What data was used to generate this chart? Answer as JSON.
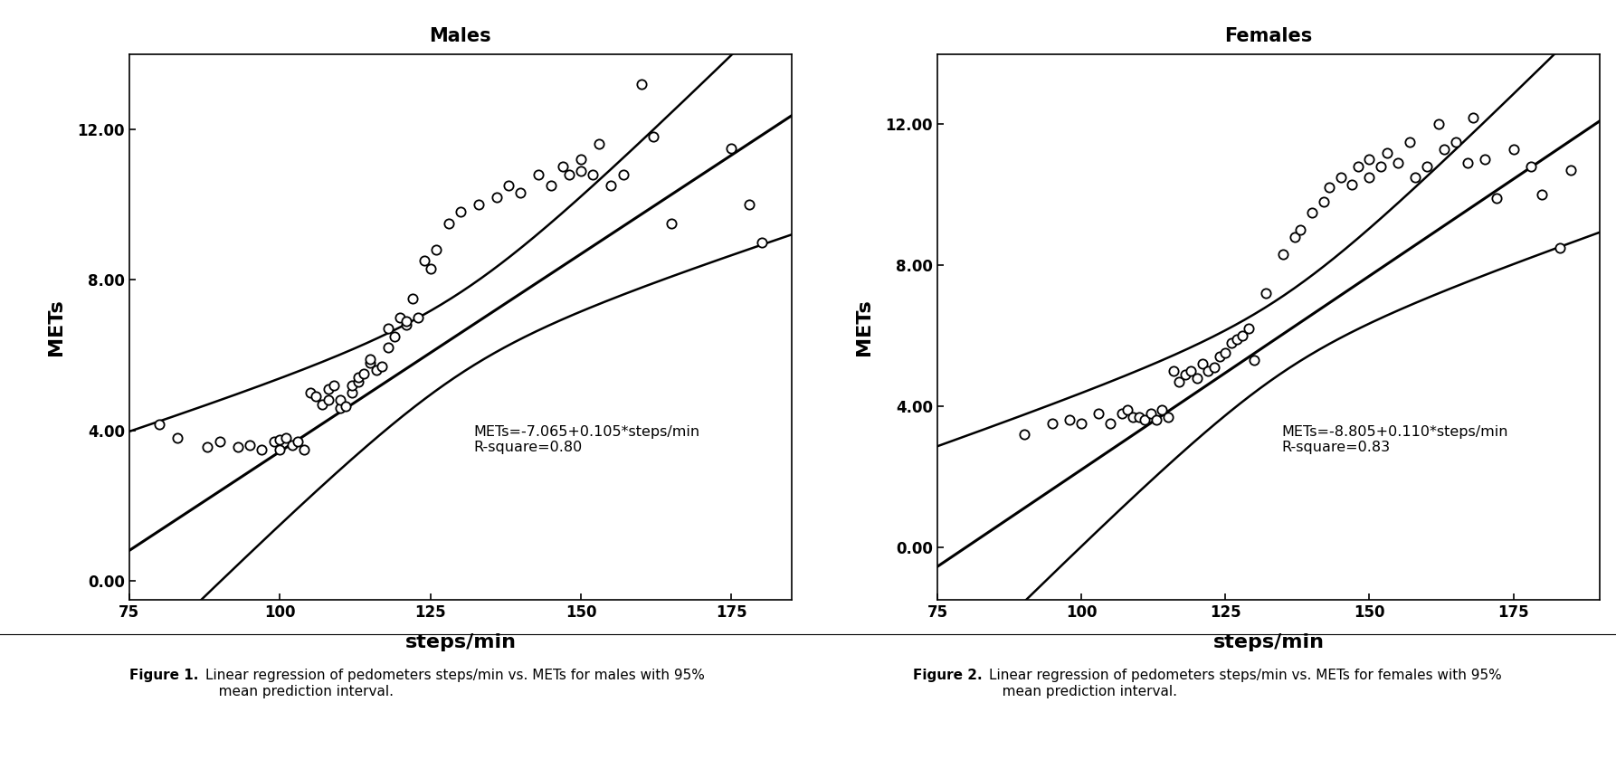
{
  "males": {
    "title": "Males",
    "intercept": -7.065,
    "slope": 0.105,
    "r_square": 0.8,
    "equation": "METs=-7.065+0.105*steps/min",
    "r_label": "R-square=0.80",
    "scatter_x": [
      80,
      83,
      88,
      90,
      93,
      95,
      97,
      99,
      100,
      100,
      101,
      102,
      103,
      104,
      105,
      106,
      107,
      108,
      108,
      109,
      110,
      110,
      111,
      112,
      112,
      113,
      113,
      114,
      115,
      115,
      116,
      117,
      118,
      118,
      119,
      120,
      121,
      121,
      122,
      123,
      124,
      125,
      126,
      128,
      130,
      133,
      136,
      138,
      140,
      143,
      145,
      147,
      148,
      150,
      150,
      152,
      153,
      155,
      157,
      160,
      162,
      165,
      175,
      178,
      180
    ],
    "scatter_y": [
      4.15,
      3.8,
      3.55,
      3.7,
      3.55,
      3.6,
      3.5,
      3.7,
      3.5,
      3.75,
      3.8,
      3.6,
      3.7,
      3.5,
      5.0,
      4.9,
      4.7,
      4.8,
      5.1,
      5.2,
      4.6,
      4.8,
      4.65,
      5.0,
      5.2,
      5.3,
      5.4,
      5.5,
      5.8,
      5.9,
      5.6,
      5.7,
      6.2,
      6.7,
      6.5,
      7.0,
      6.8,
      6.9,
      7.5,
      7.0,
      8.5,
      8.3,
      8.8,
      9.5,
      9.8,
      10.0,
      10.2,
      10.5,
      10.3,
      10.8,
      10.5,
      11.0,
      10.8,
      11.2,
      10.9,
      10.8,
      11.6,
      10.5,
      10.8,
      13.2,
      11.8,
      9.5,
      11.5,
      10.0,
      9.0
    ],
    "x_mean": 130,
    "n": 65,
    "xlim": [
      75,
      185
    ],
    "ylim": [
      -0.5,
      14.0
    ],
    "xticks": [
      75,
      100,
      125,
      150,
      175
    ],
    "yticks": [
      0.0,
      4.0,
      8.0,
      12.0
    ],
    "ytick_labels": [
      "0.00",
      "4.00",
      "8.00",
      "12.00"
    ],
    "xlabel": "steps/min",
    "ylabel": "METs",
    "ci_base": 1.4,
    "figure_caption_bold": "Figure 1.",
    "figure_caption_normal": "   Linear regression of pedometers steps/min vs. METs for males with 95%\n   mean prediction interval."
  },
  "females": {
    "title": "Females",
    "intercept": -8.805,
    "slope": 0.11,
    "r_square": 0.83,
    "equation": "METs=-8.805+0.110*steps/min",
    "r_label": "R-square=0.83",
    "scatter_x": [
      90,
      95,
      98,
      100,
      103,
      105,
      107,
      108,
      109,
      110,
      111,
      112,
      113,
      114,
      115,
      116,
      117,
      118,
      119,
      120,
      121,
      122,
      123,
      124,
      125,
      126,
      127,
      128,
      129,
      130,
      132,
      135,
      137,
      138,
      140,
      142,
      143,
      145,
      147,
      148,
      150,
      150,
      152,
      153,
      155,
      157,
      158,
      160,
      162,
      163,
      165,
      167,
      168,
      170,
      172,
      175,
      178,
      180,
      183,
      185
    ],
    "scatter_y": [
      3.2,
      3.5,
      3.6,
      3.5,
      3.8,
      3.5,
      3.8,
      3.9,
      3.7,
      3.7,
      3.6,
      3.8,
      3.6,
      3.9,
      3.7,
      5.0,
      4.7,
      4.9,
      5.0,
      4.8,
      5.2,
      5.0,
      5.1,
      5.4,
      5.5,
      5.8,
      5.9,
      6.0,
      6.2,
      5.3,
      7.2,
      8.3,
      8.8,
      9.0,
      9.5,
      9.8,
      10.2,
      10.5,
      10.3,
      10.8,
      10.5,
      11.0,
      10.8,
      11.2,
      10.9,
      11.5,
      10.5,
      10.8,
      12.0,
      11.3,
      11.5,
      10.9,
      12.2,
      11.0,
      9.9,
      11.3,
      10.8,
      10.0,
      8.5,
      10.7
    ],
    "x_mean": 135,
    "n": 60,
    "xlim": [
      75,
      190
    ],
    "ylim": [
      -1.5,
      14.0
    ],
    "xticks": [
      75,
      100,
      125,
      150,
      175
    ],
    "yticks": [
      0.0,
      4.0,
      8.0,
      12.0
    ],
    "ytick_labels": [
      "0.00",
      "4.00",
      "8.00",
      "12.00"
    ],
    "xlabel": "steps/min",
    "ylabel": "METs",
    "ci_base": 1.4,
    "figure_caption_bold": "Figure 2.",
    "figure_caption_normal": "   Linear regression of pedometers steps/min vs. METs for females with 95%\n   mean prediction interval."
  },
  "background_color": "#ffffff",
  "plot_bg_color": "#ffffff",
  "line_color": "#000000",
  "scatter_color": "#ffffff",
  "scatter_edgecolor": "#000000"
}
